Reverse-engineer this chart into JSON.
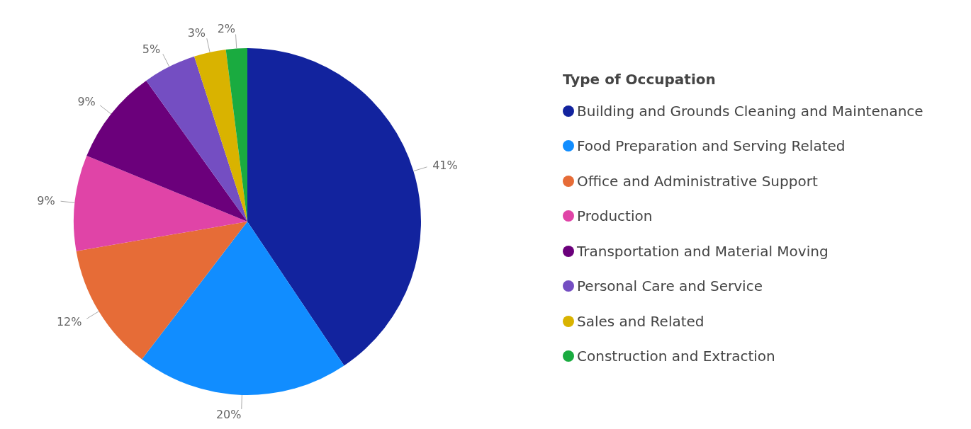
{
  "chart_data": {
    "type": "pie",
    "legend_title": "Type of Occupation",
    "legend": "right",
    "categories": [
      "Building and Grounds Cleaning and Maintenance",
      "Food Preparation and Serving Related",
      "Office and Administrative Support",
      "Production",
      "Transportation and Material Moving",
      "Personal Care and Service",
      "Sales and Related",
      "Construction and Extraction"
    ],
    "values": [
      41,
      20,
      12,
      9,
      9,
      5,
      3,
      2
    ],
    "value_labels": [
      "41%",
      "20%",
      "12%",
      "9%",
      "9%",
      "5%",
      "3%",
      "2%"
    ],
    "colors": [
      "#12239e",
      "#118dff",
      "#e66c37",
      "#e044a7",
      "#6b007b",
      "#744ec2",
      "#d9b300",
      "#1aab40"
    ]
  }
}
